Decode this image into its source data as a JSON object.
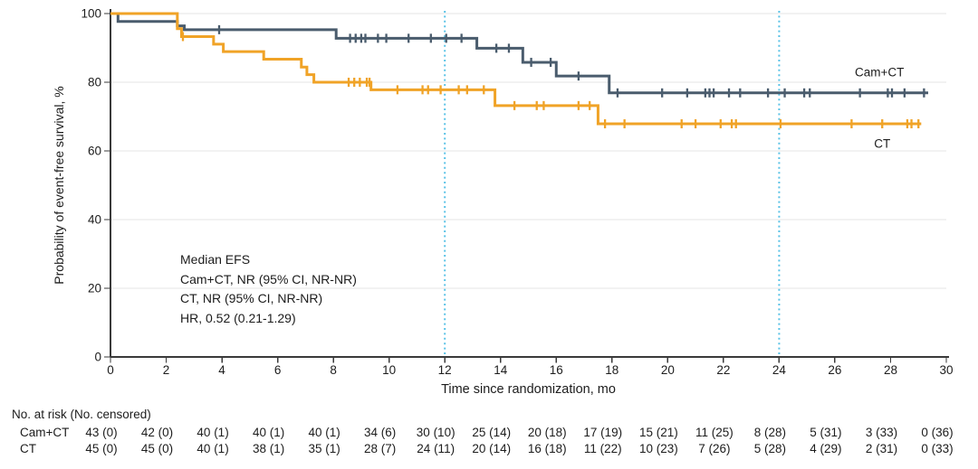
{
  "colors": {
    "camct_line": "#4A5C6D",
    "ct_line": "#F0A327",
    "reference_line": "#59C2E6",
    "grid": "#E6E6E6",
    "axis": "#3A3A3A",
    "text": "#1C1C1C"
  },
  "axes": {
    "x_title": "Time since randomization, mo",
    "y_title": "Probability of event-free survival, %"
  },
  "chart_data": {
    "type": "line",
    "subtype": "kaplan-meier-step",
    "title": "",
    "xlabel": "Time since randomization, mo",
    "ylabel": "Probability of event-free survival, %",
    "xlim": [
      0,
      30
    ],
    "ylim": [
      0,
      100
    ],
    "x_ticks": [
      0,
      2,
      4,
      6,
      8,
      10,
      12,
      14,
      16,
      18,
      20,
      22,
      24,
      26,
      28,
      30
    ],
    "y_ticks": [
      0,
      20,
      40,
      60,
      80,
      100
    ],
    "grid": "horizontal",
    "legend_position": "end-of-line labels",
    "reference_lines": {
      "x": [
        12,
        24
      ],
      "style": "dotted",
      "color": "#59C2E6"
    },
    "annotation": {
      "lines": [
        "Median EFS",
        "Cam+CT, NR (95% CI, NR-NR)",
        "CT, NR (95% CI, NR-NR)",
        "HR, 0.52 (0.21-1.29)"
      ]
    },
    "series": [
      {
        "name": "Cam+CT",
        "color": "#4A5C6D",
        "steps": [
          [
            0,
            100
          ],
          [
            0.27,
            97.7
          ],
          [
            2.4,
            96.4
          ],
          [
            2.65,
            95.3
          ],
          [
            8.1,
            92.8
          ],
          [
            13.15,
            89.9
          ],
          [
            14.8,
            85.8
          ],
          [
            16.0,
            81.8
          ],
          [
            17.9,
            76.9
          ]
        ],
        "end_x": 29.35,
        "censor_marks": [
          [
            3.9,
            95.3
          ],
          [
            8.6,
            92.8
          ],
          [
            8.8,
            92.8
          ],
          [
            9.0,
            92.8
          ],
          [
            9.15,
            92.8
          ],
          [
            9.6,
            92.8
          ],
          [
            9.9,
            92.8
          ],
          [
            10.7,
            92.8
          ],
          [
            11.5,
            92.8
          ],
          [
            12.05,
            92.8
          ],
          [
            12.6,
            92.8
          ],
          [
            13.85,
            89.9
          ],
          [
            14.3,
            89.9
          ],
          [
            15.1,
            85.8
          ],
          [
            15.8,
            85.8
          ],
          [
            16.8,
            81.8
          ],
          [
            18.2,
            76.9
          ],
          [
            19.8,
            76.9
          ],
          [
            20.7,
            76.9
          ],
          [
            21.35,
            76.9
          ],
          [
            21.5,
            76.9
          ],
          [
            21.65,
            76.9
          ],
          [
            22.2,
            76.9
          ],
          [
            22.6,
            76.9
          ],
          [
            23.6,
            76.9
          ],
          [
            24.2,
            76.9
          ],
          [
            24.9,
            76.9
          ],
          [
            25.1,
            76.9
          ],
          [
            26.9,
            76.9
          ],
          [
            27.9,
            76.9
          ],
          [
            28.05,
            76.9
          ],
          [
            28.5,
            76.9
          ],
          [
            29.2,
            76.9
          ]
        ],
        "label_pos": [
          27.6,
          82.9
        ]
      },
      {
        "name": "CT",
        "color": "#F0A327",
        "steps": [
          [
            0,
            100
          ],
          [
            2.4,
            95.6
          ],
          [
            2.55,
            93.3
          ],
          [
            3.7,
            91.1
          ],
          [
            4.05,
            88.9
          ],
          [
            5.5,
            86.7
          ],
          [
            6.85,
            84.4
          ],
          [
            7.05,
            82.2
          ],
          [
            7.3,
            80.0
          ],
          [
            9.35,
            77.8
          ],
          [
            13.8,
            73.2
          ],
          [
            17.5,
            67.9
          ]
        ],
        "end_x": 29.1,
        "censor_marks": [
          [
            2.6,
            93.3
          ],
          [
            8.55,
            80.0
          ],
          [
            8.75,
            80.0
          ],
          [
            8.95,
            80.0
          ],
          [
            9.2,
            80.0
          ],
          [
            9.3,
            80.0
          ],
          [
            10.3,
            77.8
          ],
          [
            11.2,
            77.8
          ],
          [
            11.4,
            77.8
          ],
          [
            11.85,
            77.8
          ],
          [
            12.5,
            77.8
          ],
          [
            12.8,
            77.8
          ],
          [
            13.4,
            77.8
          ],
          [
            14.5,
            73.2
          ],
          [
            15.3,
            73.2
          ],
          [
            15.55,
            73.2
          ],
          [
            16.8,
            73.2
          ],
          [
            17.2,
            73.2
          ],
          [
            17.75,
            67.9
          ],
          [
            18.45,
            67.9
          ],
          [
            20.5,
            67.9
          ],
          [
            21.0,
            67.9
          ],
          [
            21.9,
            67.9
          ],
          [
            22.3,
            67.9
          ],
          [
            22.45,
            67.9
          ],
          [
            24.05,
            67.9
          ],
          [
            26.6,
            67.9
          ],
          [
            27.7,
            67.9
          ],
          [
            28.6,
            67.9
          ],
          [
            28.75,
            67.9
          ],
          [
            29.0,
            67.9
          ]
        ],
        "label_pos": [
          27.7,
          62.2
        ]
      }
    ]
  },
  "risk_table": {
    "header": "No. at risk (No. censored)",
    "time_points": [
      0,
      2,
      4,
      6,
      8,
      10,
      12,
      14,
      16,
      18,
      20,
      22,
      24,
      26,
      28,
      30
    ],
    "rows": [
      {
        "label": "Cam+CT",
        "values": [
          "43 (0)",
          "42 (0)",
          "40 (1)",
          "40 (1)",
          "40 (1)",
          "34 (6)",
          "30 (10)",
          "25 (14)",
          "20 (18)",
          "17 (19)",
          "15 (21)",
          "11 (25)",
          "8 (28)",
          "5 (31)",
          "3 (33)",
          "0 (36)"
        ]
      },
      {
        "label": "CT",
        "values": [
          "45 (0)",
          "45 (0)",
          "40 (1)",
          "38 (1)",
          "35 (1)",
          "28 (7)",
          "24 (11)",
          "20 (14)",
          "16 (18)",
          "11 (22)",
          "10 (23)",
          "7 (26)",
          "5 (28)",
          "4 (29)",
          "2 (31)",
          "0 (33)"
        ]
      }
    ]
  }
}
